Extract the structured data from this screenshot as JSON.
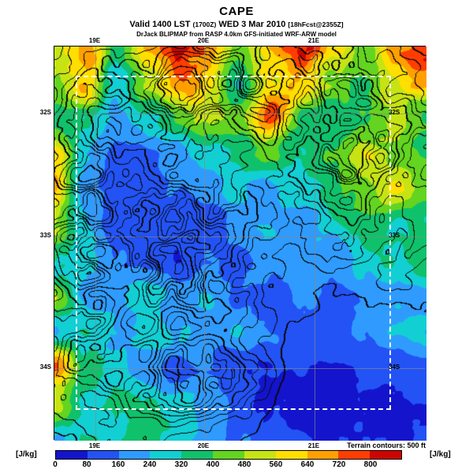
{
  "header": {
    "title": "CAPE",
    "valid_prefix": "Valid 1400 LST",
    "valid_z": "(1700Z)",
    "valid_date": "WED 3 Mar 2010",
    "forecast_tag": "[18hFcst@2355Z]",
    "model_line": "DrJack BLIPMAP from RASP 4.0km GFS-initiated WRF-ARW model"
  },
  "footer": {
    "terrain_note": "Terrain contours: 500 ft",
    "units": "[J/kg]"
  },
  "chart_data": {
    "type": "heatmap",
    "title": "CAPE",
    "units": "J/kg",
    "x_ticks": [
      "19E",
      "20E",
      "21E"
    ],
    "y_ticks": [
      "32S",
      "33S",
      "34S"
    ],
    "colorbar_ticks": [
      0,
      80,
      160,
      240,
      320,
      400,
      480,
      560,
      640,
      720,
      800
    ],
    "colorbar_colors": [
      "#1414cd",
      "#2353f5",
      "#2f9bff",
      "#12cfd4",
      "#10c16b",
      "#63d41f",
      "#c6e414",
      "#ffdf00",
      "#ffa000",
      "#ff3d00",
      "#cc0500"
    ],
    "level_step": 80,
    "terrain_contour_interval_ft": 500,
    "grid_note": "Approximate CAPE values (J/kg) sampled on a 12-row x 13-column grid; row 0 = north (top) edge, col 0 = west (left) edge",
    "value_grid": [
      [
        620,
        780,
        340,
        640,
        820,
        700,
        480,
        660,
        800,
        620,
        500,
        660,
        780
      ],
      [
        520,
        640,
        260,
        480,
        700,
        560,
        300,
        560,
        680,
        480,
        430,
        560,
        650
      ],
      [
        380,
        300,
        220,
        300,
        380,
        460,
        420,
        740,
        380,
        360,
        430,
        490,
        430
      ],
      [
        640,
        220,
        140,
        160,
        200,
        260,
        320,
        380,
        300,
        420,
        560,
        430,
        370
      ],
      [
        560,
        180,
        120,
        100,
        140,
        180,
        280,
        240,
        320,
        360,
        420,
        560,
        390
      ],
      [
        480,
        240,
        100,
        80,
        120,
        100,
        200,
        260,
        200,
        280,
        340,
        300,
        350
      ],
      [
        330,
        280,
        160,
        120,
        80,
        140,
        120,
        180,
        220,
        160,
        260,
        340,
        390
      ],
      [
        430,
        200,
        240,
        280,
        200,
        260,
        160,
        120,
        180,
        140,
        200,
        240,
        210
      ],
      [
        260,
        300,
        200,
        320,
        260,
        180,
        240,
        160,
        120,
        100,
        160,
        220,
        260
      ],
      [
        700,
        380,
        260,
        180,
        120,
        160,
        100,
        80,
        70,
        60,
        80,
        100,
        90
      ],
      [
        480,
        300,
        340,
        300,
        260,
        200,
        120,
        70,
        60,
        55,
        60,
        70,
        80
      ],
      [
        260,
        300,
        280,
        340,
        300,
        220,
        160,
        90,
        70,
        60,
        60,
        70,
        80
      ]
    ]
  }
}
